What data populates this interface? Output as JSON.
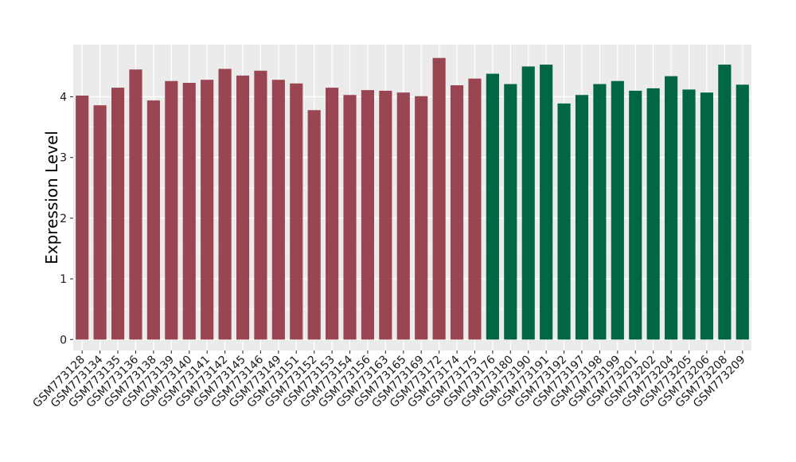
{
  "chart_data": {
    "type": "bar",
    "title": "",
    "xlabel": "",
    "ylabel": "Expression Level",
    "ylim": [
      -0.18,
      4.86
    ],
    "y_ticks": [
      0,
      1,
      2,
      3,
      4
    ],
    "y_tick_labels": [
      "0",
      "1",
      "2",
      "3",
      "4"
    ],
    "grid": true,
    "legend": "none",
    "categories": [
      "GSM773128",
      "GSM773134",
      "GSM773135",
      "GSM773136",
      "GSM773138",
      "GSM773139",
      "GSM773140",
      "GSM773141",
      "GSM773142",
      "GSM773145",
      "GSM773146",
      "GSM773149",
      "GSM773151",
      "GSM773152",
      "GSM773153",
      "GSM773154",
      "GSM773156",
      "GSM773163",
      "GSM773165",
      "GSM773169",
      "GSM773172",
      "GSM773174",
      "GSM773175",
      "GSM773176",
      "GSM773180",
      "GSM773190",
      "GSM773191",
      "GSM773192",
      "GSM773197",
      "GSM773198",
      "GSM773199",
      "GSM773201",
      "GSM773202",
      "GSM773204",
      "GSM773205",
      "GSM773206",
      "GSM773208",
      "GSM773209"
    ],
    "values": [
      4.02,
      3.86,
      4.15,
      4.45,
      3.94,
      4.26,
      4.23,
      4.28,
      4.46,
      4.35,
      4.43,
      4.28,
      4.22,
      3.78,
      4.15,
      4.03,
      4.11,
      4.1,
      4.07,
      4.01,
      4.64,
      4.19,
      4.3,
      4.38,
      4.21,
      4.5,
      4.53,
      3.89,
      4.03,
      4.21,
      4.26,
      4.1,
      4.14,
      4.34,
      4.12,
      4.07,
      4.53,
      4.2
    ],
    "group_sizes": [
      23,
      15
    ],
    "colors": {
      "group1": "#9a4552",
      "group2": "#006644",
      "panel_background": "#ebebeb",
      "grid": "#ffffff"
    }
  }
}
